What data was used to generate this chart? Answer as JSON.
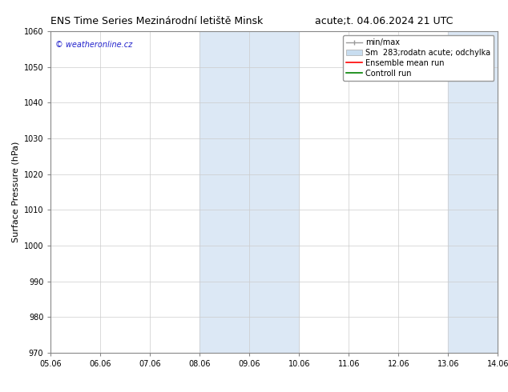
{
  "title_left": "ENS Time Series Mezinárodní letiště Minsk",
  "title_right": "acute;t. 04.06.2024 21 UTC",
  "ylabel": "Surface Pressure (hPa)",
  "ylim": [
    970,
    1060
  ],
  "yticks": [
    970,
    980,
    990,
    1000,
    1010,
    1020,
    1030,
    1040,
    1050,
    1060
  ],
  "xlim_start": 0,
  "xlim_end": 9,
  "xtick_labels": [
    "05.06",
    "06.06",
    "07.06",
    "08.06",
    "09.06",
    "10.06",
    "11.06",
    "12.06",
    "13.06",
    "14.06"
  ],
  "xtick_positions": [
    0,
    1,
    2,
    3,
    4,
    5,
    6,
    7,
    8,
    9
  ],
  "shaded_regions": [
    {
      "xmin": 3,
      "xmax": 5,
      "color": "#dce8f5"
    },
    {
      "xmin": 8,
      "xmax": 9,
      "color": "#dce8f5"
    }
  ],
  "legend_entries": [
    {
      "label": "min/max"
    },
    {
      "label": "Sm  283;rodatn acute; odchylka"
    },
    {
      "label": "Ensemble mean run"
    },
    {
      "label": "Controll run"
    }
  ],
  "legend_colors": [
    "#aaaaaa",
    "#c8ddf0",
    "red",
    "green"
  ],
  "watermark": "© weatheronline.cz",
  "watermark_color": "#2222cc",
  "background_color": "#ffffff",
  "grid_color": "#cccccc",
  "title_fontsize": 9,
  "legend_fontsize": 7,
  "axis_label_fontsize": 8,
  "tick_fontsize": 7,
  "watermark_fontsize": 7
}
